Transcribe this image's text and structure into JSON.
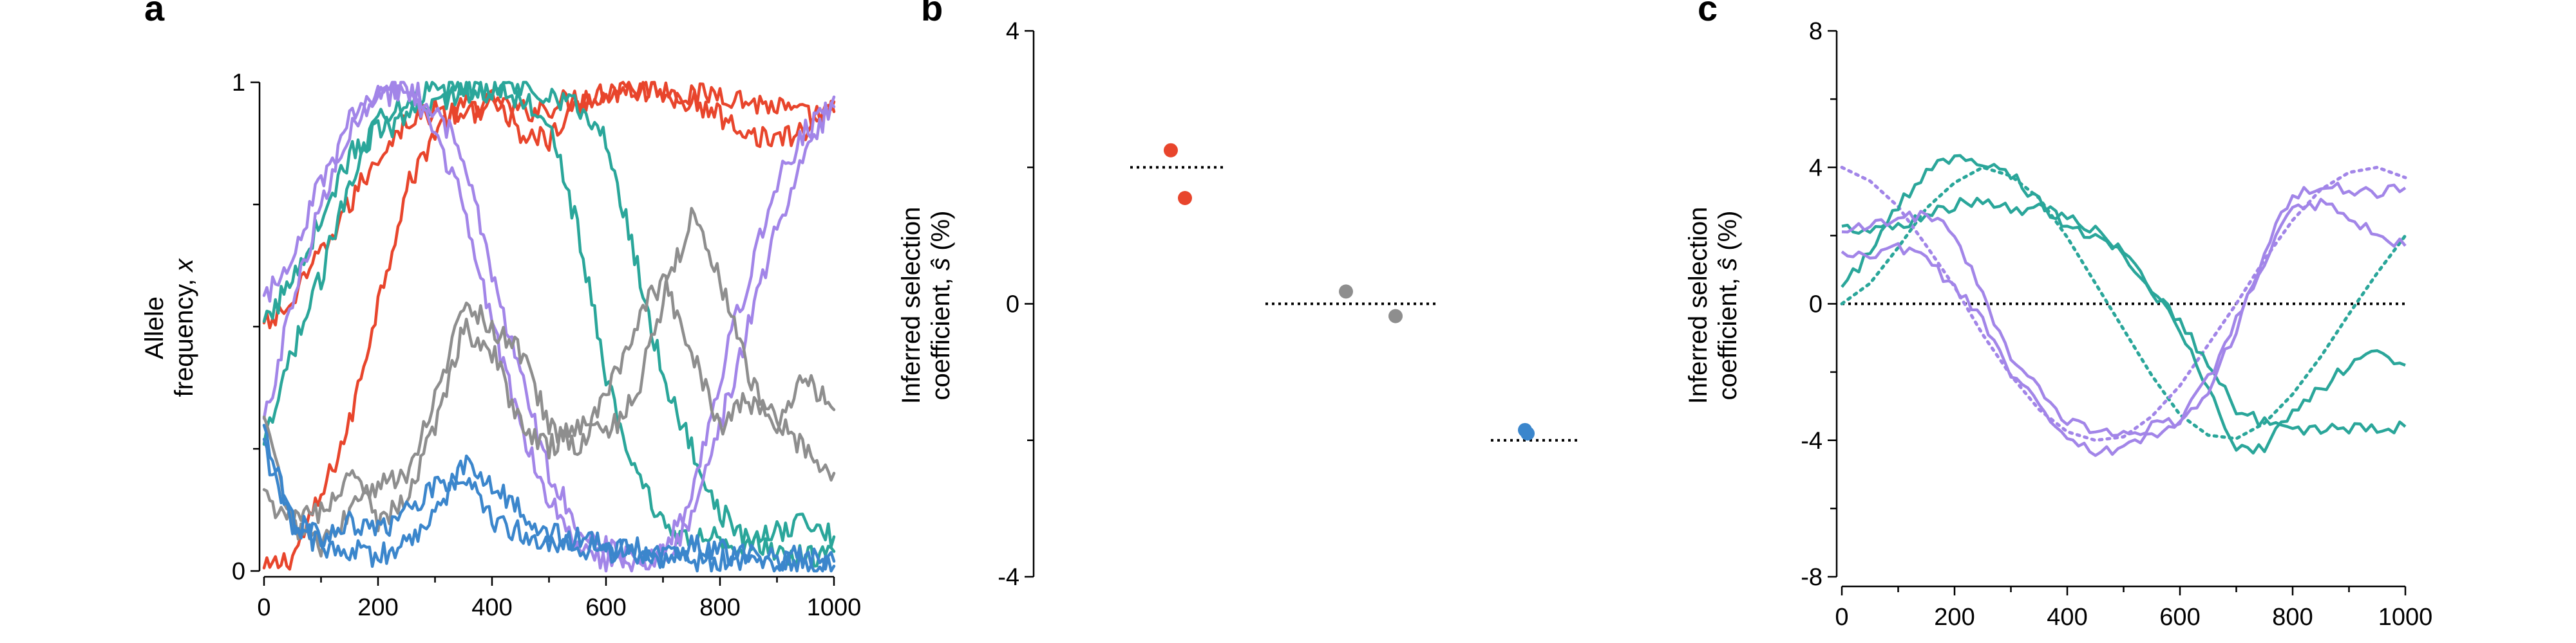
{
  "colors": {
    "red": "#e8452c",
    "teal": "#2aa69a",
    "purple": "#a285e8",
    "gray": "#8e8e8e",
    "blue": "#3b86cc"
  },
  "chart_data": [
    {
      "panel": "a",
      "type": "line",
      "xlabel": "",
      "ylabel": "Allele frequency, x",
      "ylabel_lines": [
        "Allele",
        "frequency, "
      ],
      "ylabel_var": "x",
      "xlim": [
        0,
        1000
      ],
      "ylim": [
        0,
        1
      ],
      "xticks": [
        "0",
        "200",
        "400",
        "600",
        "800",
        "1000"
      ],
      "yticks": [
        "0",
        "1"
      ],
      "series": [
        {
          "color": "red",
          "x": [
            0,
            50,
            100,
            150,
            200,
            250,
            300,
            350,
            400,
            450,
            500,
            550,
            600,
            650,
            700,
            750,
            800,
            850,
            900,
            950,
            1000
          ],
          "y": [
            0,
            0.03,
            0.15,
            0.3,
            0.55,
            0.78,
            0.9,
            0.95,
            0.96,
            0.94,
            0.95,
            0.97,
            0.98,
            0.99,
            0.99,
            0.97,
            0.98,
            0.96,
            0.95,
            0.93,
            0.94
          ]
        },
        {
          "color": "red",
          "x": [
            0,
            50,
            100,
            150,
            200,
            250,
            300,
            350,
            400,
            450,
            500,
            550,
            600,
            650,
            700,
            750,
            800,
            850,
            900,
            950,
            1000
          ],
          "y": [
            0.5,
            0.55,
            0.65,
            0.75,
            0.85,
            0.92,
            0.94,
            0.93,
            0.96,
            0.9,
            0.88,
            0.95,
            0.98,
            0.99,
            0.97,
            0.96,
            0.93,
            0.9,
            0.88,
            0.9,
            0.96
          ]
        },
        {
          "color": "teal",
          "x": [
            0,
            50,
            100,
            150,
            200,
            250,
            300,
            350,
            400,
            450,
            500,
            550,
            600,
            650,
            700,
            750,
            800,
            850,
            900,
            950,
            1000
          ],
          "y": [
            0.25,
            0.45,
            0.6,
            0.8,
            0.93,
            0.97,
            0.98,
            0.99,
            0.98,
            0.99,
            0.98,
            0.95,
            0.88,
            0.65,
            0.4,
            0.25,
            0.12,
            0.06,
            0.04,
            0.03,
            0.04
          ]
        },
        {
          "color": "teal",
          "x": [
            0,
            50,
            100,
            150,
            200,
            250,
            300,
            350,
            400,
            450,
            500,
            550,
            600,
            650,
            700,
            750,
            800,
            850,
            900,
            950,
            1000
          ],
          "y": [
            0.5,
            0.6,
            0.72,
            0.85,
            0.9,
            0.92,
            0.96,
            0.98,
            0.99,
            0.97,
            0.93,
            0.7,
            0.4,
            0.2,
            0.1,
            0.06,
            0.07,
            0.05,
            0.08,
            0.1,
            0.07
          ]
        },
        {
          "color": "purple",
          "x": [
            0,
            50,
            100,
            150,
            200,
            250,
            300,
            350,
            400,
            450,
            500,
            550,
            600,
            650,
            700,
            750,
            800,
            850,
            900,
            950,
            1000
          ],
          "y": [
            0.3,
            0.55,
            0.75,
            0.92,
            0.98,
            0.97,
            0.9,
            0.75,
            0.5,
            0.3,
            0.15,
            0.06,
            0.02,
            0.01,
            0.03,
            0.1,
            0.3,
            0.5,
            0.7,
            0.85,
            0.97
          ]
        },
        {
          "color": "purple",
          "x": [
            0,
            50,
            100,
            150,
            200,
            250,
            300,
            350,
            400,
            450,
            500,
            550,
            600,
            650,
            700,
            750,
            800,
            850,
            900,
            950,
            1000
          ],
          "y": [
            0.55,
            0.65,
            0.8,
            0.9,
            0.98,
            0.99,
            0.95,
            0.85,
            0.6,
            0.4,
            0.2,
            0.1,
            0.05,
            0.02,
            0.05,
            0.15,
            0.4,
            0.6,
            0.8,
            0.9,
            0.95
          ]
        },
        {
          "color": "gray",
          "x": [
            0,
            50,
            100,
            150,
            200,
            250,
            300,
            350,
            400,
            450,
            500,
            550,
            600,
            650,
            700,
            750,
            800,
            850,
            900,
            950,
            1000
          ],
          "y": [
            0.3,
            0.1,
            0.12,
            0.2,
            0.1,
            0.15,
            0.3,
            0.5,
            0.45,
            0.3,
            0.25,
            0.3,
            0.28,
            0.35,
            0.55,
            0.72,
            0.6,
            0.4,
            0.3,
            0.25,
            0.2
          ]
        },
        {
          "color": "gray",
          "x": [
            0,
            50,
            100,
            150,
            200,
            250,
            300,
            350,
            400,
            450,
            500,
            550,
            600,
            650,
            700,
            750,
            800,
            850,
            900,
            950,
            1000
          ],
          "y": [
            0.15,
            0.1,
            0.05,
            0.12,
            0.18,
            0.2,
            0.35,
            0.55,
            0.5,
            0.45,
            0.3,
            0.25,
            0.35,
            0.5,
            0.6,
            0.45,
            0.3,
            0.35,
            0.3,
            0.4,
            0.33
          ]
        },
        {
          "color": "blue",
          "x": [
            0,
            50,
            100,
            150,
            200,
            250,
            300,
            350,
            400,
            450,
            500,
            550,
            600,
            650,
            700,
            750,
            800,
            850,
            900,
            950,
            1000
          ],
          "y": [
            0.28,
            0.1,
            0.07,
            0.1,
            0.08,
            0.12,
            0.18,
            0.2,
            0.1,
            0.08,
            0.06,
            0.07,
            0.05,
            0.04,
            0.03,
            0.05,
            0.04,
            0.03,
            0.02,
            0.03,
            0.02
          ]
        },
        {
          "color": "blue",
          "x": [
            0,
            50,
            100,
            150,
            200,
            250,
            300,
            350,
            400,
            450,
            500,
            550,
            600,
            650,
            700,
            750,
            800,
            850,
            900,
            950,
            1000
          ],
          "y": [
            0.25,
            0.1,
            0.05,
            0.04,
            0.03,
            0.05,
            0.12,
            0.22,
            0.18,
            0.12,
            0.08,
            0.05,
            0.04,
            0.05,
            0.03,
            0.02,
            0.02,
            0.01,
            0.02,
            0.01,
            0.01
          ]
        }
      ]
    },
    {
      "panel": "b",
      "type": "scatter",
      "ylabel_lines": [
        "Inferred selection",
        "coefficient, "
      ],
      "ylabel_var": "ŝ",
      "ylabel_unit": " (%)",
      "ylim": [
        -4,
        4
      ],
      "yticks": [
        "4",
        "0",
        "-4"
      ],
      "groups": [
        {
          "color": "red",
          "true_value": 2,
          "points": [
            2.25,
            1.55
          ]
        },
        {
          "color": "gray",
          "true_value": 0,
          "points": [
            0.18,
            -0.18
          ]
        },
        {
          "color": "blue",
          "true_value": -2,
          "points": [
            -1.85,
            -1.9
          ]
        }
      ]
    },
    {
      "panel": "c",
      "type": "line",
      "ylabel_lines": [
        "Inferred selection",
        "coefficient, "
      ],
      "ylabel_var": "ŝ",
      "ylabel_unit": " (%)",
      "xlim": [
        0,
        1000
      ],
      "ylim": [
        -8,
        8
      ],
      "xticks": [
        "0",
        "200",
        "400",
        "600",
        "800",
        "1000"
      ],
      "yticks": [
        "8",
        "4",
        "0",
        "-4",
        "-8"
      ],
      "true_curves": [
        {
          "color": "teal",
          "x": [
            0,
            50,
            100,
            150,
            200,
            250,
            300,
            350,
            400,
            450,
            500,
            550,
            600,
            650,
            700,
            750,
            800,
            850,
            900,
            950,
            1000
          ],
          "y": [
            0,
            0.6,
            1.65,
            2.8,
            3.55,
            4,
            3.75,
            3.1,
            1.95,
            0.6,
            -0.75,
            -2.1,
            -3.25,
            -3.85,
            -3.95,
            -3.5,
            -2.65,
            -1.55,
            -0.3,
            0.9,
            2
          ]
        },
        {
          "color": "purple",
          "x": [
            0,
            50,
            100,
            150,
            200,
            250,
            300,
            350,
            400,
            450,
            500,
            550,
            600,
            650,
            700,
            750,
            800,
            850,
            900,
            950,
            1000
          ],
          "y": [
            4,
            3.6,
            2.85,
            1.7,
            0.5,
            -0.9,
            -2.1,
            -3.1,
            -3.75,
            -4,
            -3.9,
            -3.3,
            -2.4,
            -1.2,
            0,
            1.3,
            2.45,
            3.35,
            3.85,
            4,
            3.7
          ]
        }
      ],
      "inferred_curves": [
        {
          "color": "teal",
          "x": [
            0,
            50,
            100,
            150,
            200,
            250,
            300,
            350,
            400,
            450,
            500,
            550,
            600,
            650,
            700,
            750,
            800,
            850,
            900,
            950,
            1000
          ],
          "y": [
            2.3,
            2.1,
            2.3,
            2.6,
            2.9,
            3.05,
            2.8,
            2.75,
            2.5,
            2.2,
            1.5,
            0.4,
            -0.5,
            -1.8,
            -3.1,
            -3.5,
            -3.8,
            -3.7,
            -3.65,
            -3.7,
            -3.6
          ]
        },
        {
          "color": "teal",
          "x": [
            0,
            50,
            100,
            150,
            200,
            250,
            300,
            350,
            400,
            450,
            500,
            550,
            600,
            650,
            700,
            750,
            800,
            850,
            900,
            950,
            1000
          ],
          "y": [
            0.5,
            1.5,
            2.9,
            3.9,
            4.3,
            4.2,
            3.8,
            3,
            2.3,
            2,
            1.5,
            0.5,
            -0.8,
            -2.5,
            -4.3,
            -4.2,
            -3.2,
            -2.5,
            -1.8,
            -1.3,
            -1.8
          ]
        },
        {
          "color": "purple",
          "x": [
            0,
            50,
            100,
            150,
            200,
            250,
            300,
            350,
            400,
            450,
            500,
            550,
            600,
            650,
            700,
            750,
            800,
            850,
            900,
            950,
            1000
          ],
          "y": [
            2.1,
            2.3,
            2.5,
            2.55,
            2.1,
            0.2,
            -1.5,
            -2.5,
            -3.5,
            -3.75,
            -3.8,
            -3.6,
            -3.4,
            -2.2,
            -0.5,
            1.2,
            2.8,
            2.95,
            2.5,
            2.1,
            1.7
          ]
        },
        {
          "color": "purple",
          "x": [
            0,
            50,
            100,
            150,
            200,
            250,
            300,
            350,
            400,
            450,
            500,
            550,
            600,
            650,
            700,
            750,
            800,
            850,
            900,
            950,
            1000
          ],
          "y": [
            1.5,
            1.4,
            1.6,
            1.3,
            0.5,
            -0.5,
            -2,
            -3,
            -3.9,
            -4.4,
            -4.3,
            -3.9,
            -3.6,
            -2.5,
            -0.8,
            1.5,
            3.2,
            3.5,
            3.3,
            3.2,
            3.4
          ]
        }
      ]
    }
  ]
}
